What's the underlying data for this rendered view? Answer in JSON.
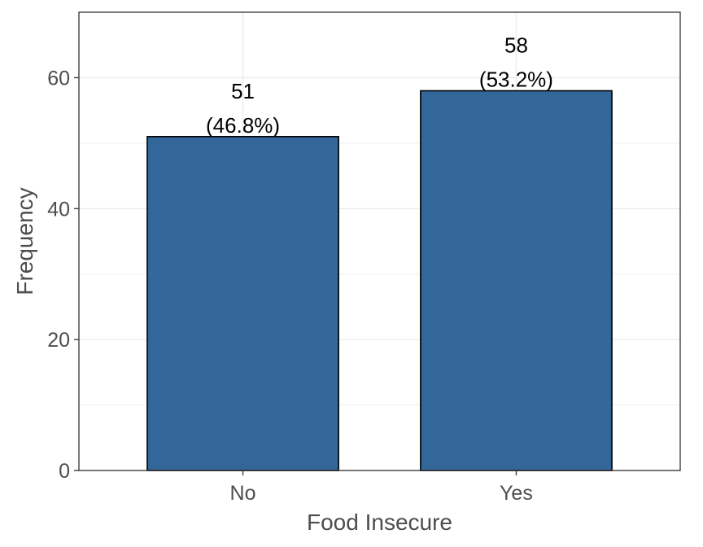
{
  "chart_data": {
    "type": "bar",
    "title": "",
    "xlabel": "Food Insecure",
    "ylabel": "Frequency",
    "categories": [
      "No",
      "Yes"
    ],
    "values": [
      51,
      58
    ],
    "percent_labels": [
      "(46.8%)",
      "(53.2%)"
    ],
    "ylim": [
      0,
      70
    ],
    "yticks": [
      0,
      20,
      40,
      60
    ],
    "yticks_minor": [
      10,
      30,
      50,
      70
    ],
    "grid": true,
    "legend": "none",
    "colors": {
      "bar_fill": "#336699",
      "bar_stroke": "#000000",
      "grid": "#ebebeb",
      "panel_border": "#333333",
      "text": "#4d4d4d"
    }
  }
}
